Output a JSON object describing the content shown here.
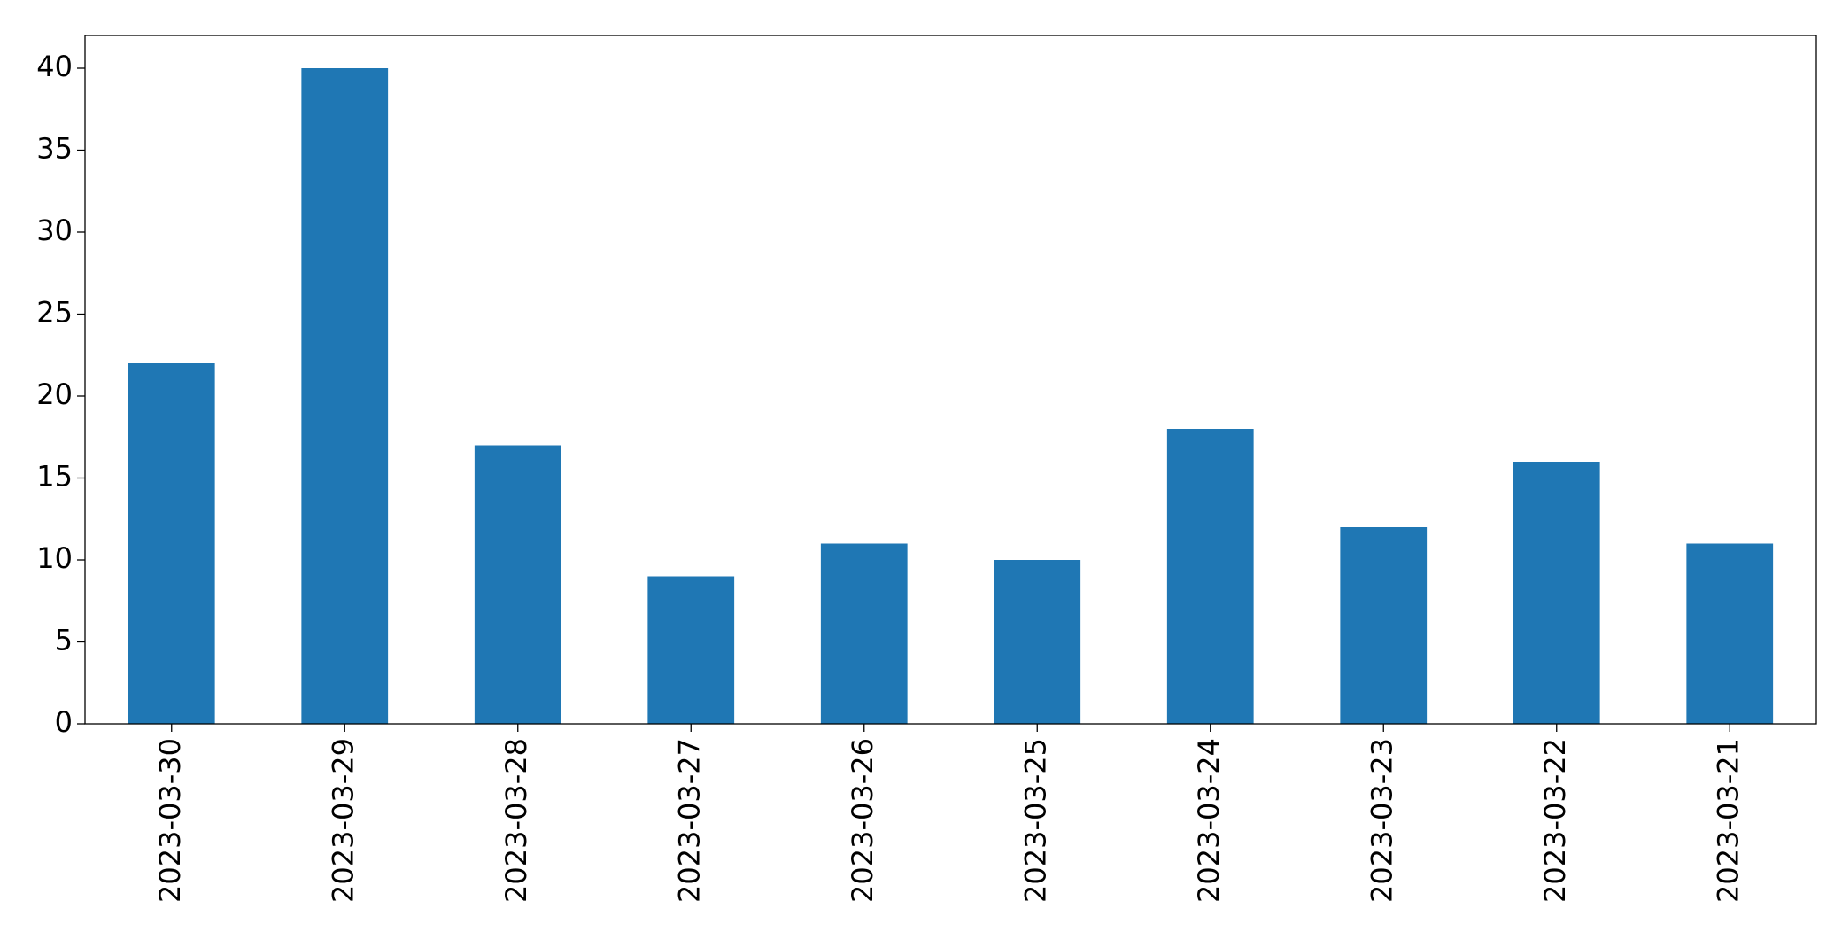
{
  "chart_data": {
    "type": "bar",
    "categories": [
      "2023-03-30",
      "2023-03-29",
      "2023-03-28",
      "2023-03-27",
      "2023-03-26",
      "2023-03-25",
      "2023-03-24",
      "2023-03-23",
      "2023-03-22",
      "2023-03-21"
    ],
    "values": [
      22,
      40,
      17,
      9,
      11,
      10,
      18,
      12,
      16,
      11
    ],
    "color": "#1f77b4",
    "ylim": [
      0,
      42
    ],
    "yticks": [
      0,
      5,
      10,
      15,
      20,
      25,
      30,
      35,
      40
    ],
    "grid": false
  }
}
